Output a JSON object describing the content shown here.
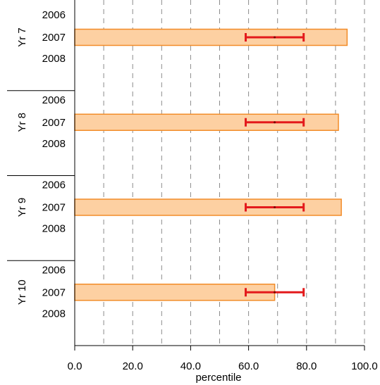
{
  "chart_data": {
    "type": "bar",
    "orientation": "horizontal",
    "title": "",
    "xlabel": "percentile",
    "ylabel": "",
    "xlim": [
      0,
      100
    ],
    "x_ticks": [
      "0.0",
      "20.0",
      "40.0",
      "60.0",
      "80.0",
      "100.0"
    ],
    "x_tick_values": [
      0,
      20,
      40,
      60,
      80,
      100
    ],
    "minor_gridlines": [
      10,
      30,
      50,
      70,
      90
    ],
    "grid": "vertical-dashed",
    "bar_color": "#fdd0a2",
    "bar_edge_color": "#f28c28",
    "errorbar_color": "#e31a1c",
    "groups": [
      {
        "label": "Yr 7",
        "years": [
          "2006",
          "2007",
          "2008"
        ],
        "bars": [
          {
            "year": "2007",
            "value": 94,
            "ci_low": 59,
            "ci_high": 79,
            "point": 69
          }
        ]
      },
      {
        "label": "Yr 8",
        "years": [
          "2006",
          "2007",
          "2008"
        ],
        "bars": [
          {
            "year": "2007",
            "value": 91,
            "ci_low": 59,
            "ci_high": 79,
            "point": 69
          }
        ]
      },
      {
        "label": "Yr 9",
        "years": [
          "2006",
          "2007",
          "2008"
        ],
        "bars": [
          {
            "year": "2007",
            "value": 92,
            "ci_low": 59,
            "ci_high": 79,
            "point": 69
          }
        ]
      },
      {
        "label": "Yr 10",
        "years": [
          "2006",
          "2007",
          "2008"
        ],
        "bars": [
          {
            "year": "2007",
            "value": 69,
            "ci_low": 59,
            "ci_high": 79,
            "point": 69
          }
        ]
      }
    ]
  }
}
